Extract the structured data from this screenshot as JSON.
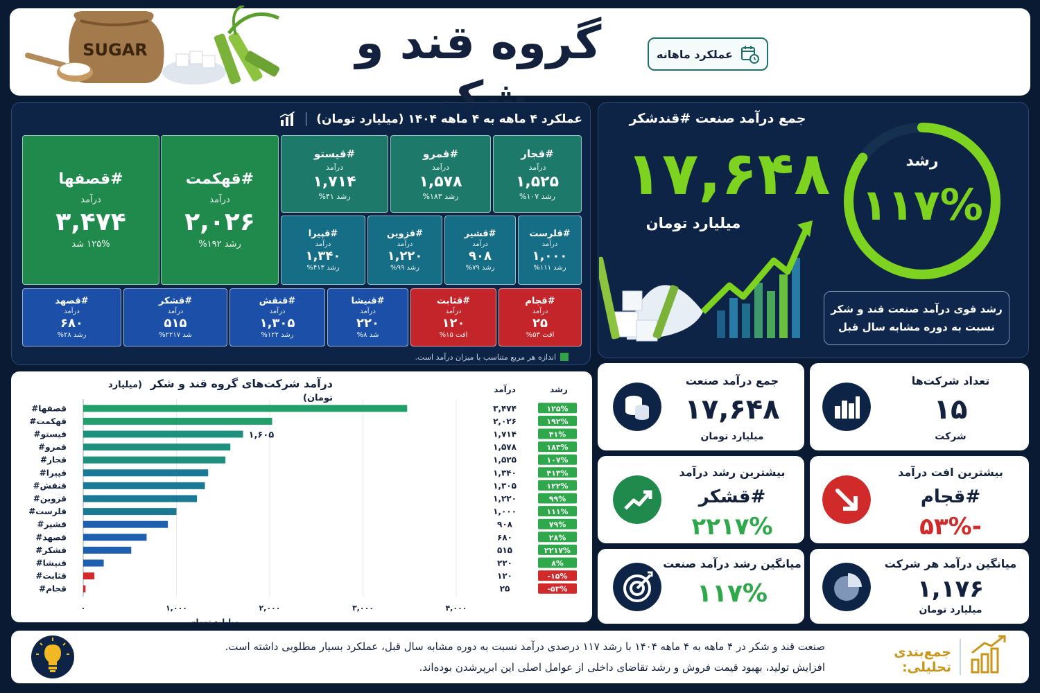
{
  "header": {
    "title": "گروه قند و شکر",
    "badge": "عملکرد ماهانه",
    "hero_text": "SUGAR"
  },
  "treemap": {
    "title": "عملکرد ۴ ماهه به ۴ ماهه ۱۴۰۴ (میلیارد تومان)",
    "note": "اندازه هر مربع متناسب با میزان درآمد است.",
    "revenue_label": "درآمد",
    "tiles": [
      {
        "name": "#قصفها",
        "value": "۳,۴۷۴",
        "growth": "۱۲۵% شد",
        "color": "#1f8a4c"
      },
      {
        "name": "#قهکمت",
        "value": "۲,۰۲۶",
        "growth": "رشد ۱۹۲%",
        "color": "#1f8a4c"
      },
      {
        "name": "#قیستو",
        "value": "۱,۷۱۴",
        "growth": "رشد ۴۱%",
        "color": "#1d7a6a"
      },
      {
        "name": "#قمرو",
        "value": "۱,۵۷۸",
        "growth": "رشد ۱۸۳%",
        "color": "#1d7a6a"
      },
      {
        "name": "#قجار",
        "value": "۱,۵۲۵",
        "growth": "رشد ۱۰۷%",
        "color": "#1d7a6a"
      },
      {
        "name": "#قپیرا",
        "value": "۱,۳۴۰",
        "growth": "رشد ۴۱۳%",
        "color": "#166d86"
      },
      {
        "name": "#قزوین",
        "value": "۱,۲۲۰",
        "growth": "رشد ۹۹%",
        "color": "#166d86"
      },
      {
        "name": "#قشیر",
        "value": "۹۰۸",
        "growth": "رشد ۷۹%",
        "color": "#166d86"
      },
      {
        "name": "#قلرست",
        "value": "۱,۰۰۰",
        "growth": "رشد ۱۱۱%",
        "color": "#166d86"
      },
      {
        "name": "#قصهد",
        "value": "۶۸۰",
        "growth": "رشد ۲۸%",
        "color": "#1b4fa8"
      },
      {
        "name": "#قشکر",
        "value": "۵۱۵",
        "growth": "شد ۲۲۱۷%",
        "color": "#1b4fa8"
      },
      {
        "name": "#قنقش",
        "value": "۱,۳۰۵",
        "growth": "رشد ۱۲۲%",
        "color": "#1b4fa8"
      },
      {
        "name": "#قنیشا",
        "value": "۲۲۰",
        "growth": "شد ۸%",
        "color": "#1b4fa8"
      },
      {
        "name": "#قثابت",
        "value": "۱۲۰",
        "growth": "افت ۱۵%",
        "color": "#c3252b"
      },
      {
        "name": "#قجام",
        "value": "۲۵",
        "growth": "افت ۵۳%",
        "color": "#c3252b"
      }
    ]
  },
  "industry": {
    "title": "جمع درآمد صنعت #قندشکر",
    "value": "۱۷,۶۴۸",
    "unit": "میلیارد تومان",
    "growth_label": "رشد",
    "growth_value": "۱۱۷%",
    "growth_fraction": 0.85,
    "note_line1": "رشد قوی درآمد صنعت قند و شکر",
    "note_line2": "نسبت به دوره مشابه سال قبل"
  },
  "chart_data": {
    "type": "bar",
    "title": "درآمد شرکت‌های گروه قند و شکر",
    "unit_label": "(میلیارد تومان)",
    "col_revenue": "درآمد",
    "col_growth": "رشد",
    "xlabel": "میلیارد تومان",
    "xlim": [
      0,
      4000
    ],
    "xticks": [
      "۰",
      "۱,۰۰۰",
      "۲,۰۰۰",
      "۳,۰۰۰",
      "۴,۰۰۰"
    ],
    "xtick_values": [
      0,
      1000,
      2000,
      3000,
      4000
    ],
    "annotation": "۱,۶۰۵",
    "annotation_value": 1605,
    "categories": [
      "#قصفها",
      "#قهکمت",
      "#قیستو",
      "#قمرو",
      "#قجار",
      "#قپیرا",
      "#قنقش",
      "#قزوین",
      "#قلرست",
      "#قشیر",
      "#قصهد",
      "#قشکر",
      "#قنیشا",
      "#قثابت",
      "#قجام"
    ],
    "values": [
      3474,
      2026,
      1714,
      1578,
      1525,
      1340,
      1305,
      1220,
      1000,
      908,
      680,
      515,
      220,
      120,
      25
    ],
    "value_labels": [
      "۳,۴۷۴",
      "۲,۰۲۶",
      "۱,۷۱۴",
      "۱,۵۷۸",
      "۱,۵۲۵",
      "۱,۳۴۰",
      "۱,۳۰۵",
      "۱,۲۲۰",
      "۱,۰۰۰",
      "۹۰۸",
      "۶۸۰",
      "۵۱۵",
      "۲۲۰",
      "۱۲۰",
      "۲۵"
    ],
    "growth_labels": [
      "۱۲۵%",
      "۱۹۲%",
      "۴۱%",
      "۱۸۳%",
      "۱۰۷%",
      "۴۱۳%",
      "۱۲۲%",
      "۹۹%",
      "۱۱۱%",
      "۷۹%",
      "۲۸%",
      "۲۲۱۷%",
      "۸%",
      "-۱۵%",
      "-۵۳%"
    ],
    "growth_values": [
      125,
      192,
      41,
      183,
      107,
      413,
      122,
      99,
      111,
      79,
      28,
      2217,
      8,
      -15,
      -53
    ],
    "colors": [
      "#22a06b",
      "#22a06b",
      "#1f8f7e",
      "#1f8f7e",
      "#1f8f7e",
      "#1a7a96",
      "#1a7a96",
      "#1a7a96",
      "#1a7a96",
      "#1f5fb0",
      "#1f5fb0",
      "#1f5fb0",
      "#1f5fb0",
      "#d12a2a",
      "#d12a2a"
    ]
  },
  "kpis": {
    "revenue": {
      "title": "جمع درآمد صنعت",
      "value": "۱۷,۶۴۸",
      "unit": "میلیارد تومان"
    },
    "companies": {
      "title": "تعداد شرکت‌ها",
      "value": "۱۵",
      "unit": "شرکت"
    },
    "top_growth": {
      "title": "بیشترین رشد درآمد",
      "name": "#قشکر",
      "value": "۲۲۱۷%"
    },
    "top_drop": {
      "title": "بیشترین افت درآمد",
      "name": "#قجام",
      "value": "-۵۳%"
    },
    "avg_growth": {
      "title": "میانگین رشد درآمد صنعت",
      "value": "۱۱۷%"
    },
    "avg_revenue": {
      "title": "میانگین درآمد هر شرکت",
      "value": "۱,۱۷۶",
      "unit": "میلیارد تومان"
    }
  },
  "colors": {
    "green": "#7ed321",
    "red": "#d12a2a",
    "navy": "#0a1a33",
    "gold": "#c9961a"
  },
  "footer": {
    "label": "جمع‌بندی تحلیلی:",
    "line1": "صنعت قند و شکر در ۴ ماهه به ۴ ماهه ۱۴۰۴ با رشد ۱۱۷ درصدی درآمد نسبت به دوره مشابه سال قبل، عملکرد بسیار مطلوبی داشته است.",
    "line2": "افزایش تولید، بهبود قیمت فروش و رشد تقاضای داخلی از عوامل اصلی این ابرپرشدن بوده‌اند."
  }
}
